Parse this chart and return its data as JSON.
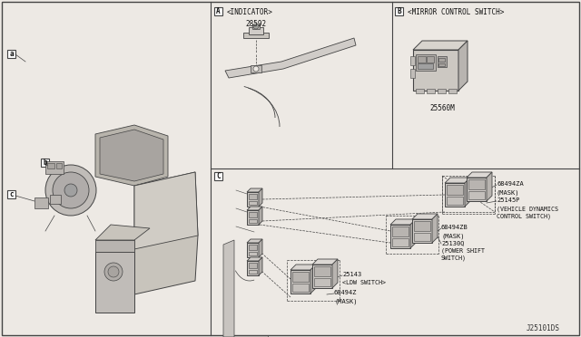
{
  "bg_color": "#ede9e4",
  "line_color": "#444444",
  "dark_color": "#888888",
  "title_diagram_number": "J25101DS",
  "A_title": "<INDICATOR>",
  "A_part": "28592",
  "B_title": "<MIRROR CONTROL SWITCH>",
  "B_part": "25560M",
  "C_parts": [
    [
      "68494ZA",
      "(MASK)"
    ],
    [
      "25145P",
      "(VEHICLE DYNAMICS",
      "CONTROL SWITCH)"
    ],
    [
      "68494ZB",
      "(MASK)"
    ],
    [
      "25130Q",
      "(POWER SHIFT",
      "SWITCH)"
    ],
    [
      "25143",
      "<LDW SWITCH>"
    ],
    [
      "68494Z",
      "(MASK)"
    ]
  ],
  "fig_w": 6.4,
  "fig_h": 3.72,
  "dpi": 100
}
